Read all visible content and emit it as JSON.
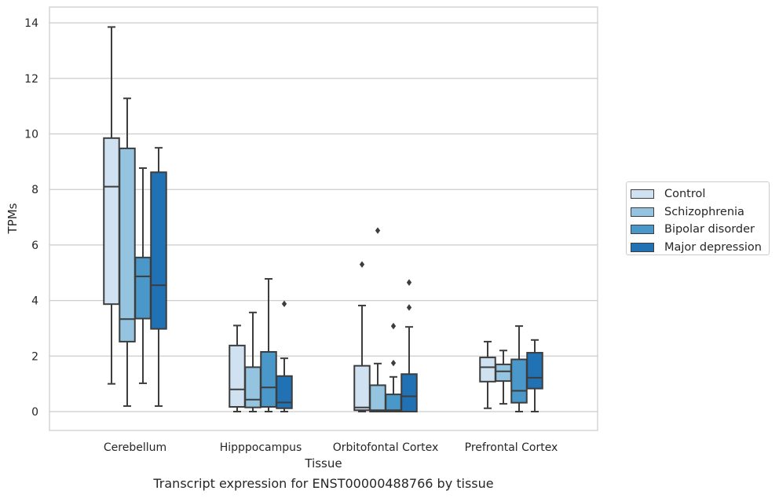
{
  "chart_data": {
    "type": "box",
    "xlabel": "Tissue",
    "ylabel": "TPMs",
    "caption": "Transcript expression for ENST00000488766 by tissue",
    "ylim": [
      -0.65,
      14.5
    ],
    "yticks": [
      0,
      2,
      4,
      6,
      8,
      10,
      12,
      14
    ],
    "grid": true,
    "legend_position": "right",
    "categories": [
      "Cerebellum",
      "Hipppocampus",
      "Orbitofontal Cortex",
      "Prefrontal Cortex"
    ],
    "series": [
      {
        "name": "Control",
        "color": "#d0e1f2",
        "boxes": [
          {
            "whisker_low": 1.0,
            "q1": 3.87,
            "median": 8.1,
            "q3": 9.85,
            "whisker_high": 13.85,
            "outliers": []
          },
          {
            "whisker_low": 0.0,
            "q1": 0.17,
            "median": 0.8,
            "q3": 2.38,
            "whisker_high": 3.1,
            "outliers": []
          },
          {
            "whisker_low": 0.0,
            "q1": 0.05,
            "median": 0.15,
            "q3": 1.65,
            "whisker_high": 3.82,
            "outliers": [
              5.3
            ]
          },
          {
            "whisker_low": 0.12,
            "q1": 1.08,
            "median": 1.6,
            "q3": 1.95,
            "whisker_high": 2.52,
            "outliers": []
          }
        ]
      },
      {
        "name": "Schizophrenia",
        "color": "#94c4df",
        "boxes": [
          {
            "whisker_low": 0.2,
            "q1": 2.52,
            "median": 3.33,
            "q3": 9.48,
            "whisker_high": 11.28,
            "outliers": []
          },
          {
            "whisker_low": 0.0,
            "q1": 0.15,
            "median": 0.43,
            "q3": 1.6,
            "whisker_high": 3.57,
            "outliers": []
          },
          {
            "whisker_low": 0.0,
            "q1": 0.0,
            "median": 0.05,
            "q3": 0.95,
            "whisker_high": 1.73,
            "outliers": [
              6.52
            ]
          },
          {
            "whisker_low": 0.28,
            "q1": 1.1,
            "median": 1.45,
            "q3": 1.7,
            "whisker_high": 2.2,
            "outliers": []
          }
        ]
      },
      {
        "name": "Bipolar disorder",
        "color": "#4a98c9",
        "boxes": [
          {
            "whisker_low": 1.02,
            "q1": 3.35,
            "median": 4.87,
            "q3": 5.55,
            "whisker_high": 8.77,
            "outliers": []
          },
          {
            "whisker_low": 0.0,
            "q1": 0.17,
            "median": 0.87,
            "q3": 2.15,
            "whisker_high": 4.78,
            "outliers": []
          },
          {
            "whisker_low": 0.0,
            "q1": 0.0,
            "median": 0.05,
            "q3": 0.62,
            "whisker_high": 1.25,
            "outliers": [
              1.75,
              3.08
            ]
          },
          {
            "whisker_low": 0.0,
            "q1": 0.32,
            "median": 0.75,
            "q3": 1.88,
            "whisker_high": 3.08,
            "outliers": []
          }
        ]
      },
      {
        "name": "Major depression",
        "color": "#2171b5",
        "boxes": [
          {
            "whisker_low": 0.2,
            "q1": 2.98,
            "median": 4.55,
            "q3": 8.62,
            "whisker_high": 9.5,
            "outliers": []
          },
          {
            "whisker_low": 0.0,
            "q1": 0.12,
            "median": 0.33,
            "q3": 1.28,
            "whisker_high": 1.92,
            "outliers": [
              3.88
            ]
          },
          {
            "whisker_low": 0.0,
            "q1": 0.0,
            "median": 0.55,
            "q3": 1.35,
            "whisker_high": 3.05,
            "outliers": [
              3.75,
              4.65
            ]
          },
          {
            "whisker_low": 0.0,
            "q1": 0.83,
            "median": 1.22,
            "q3": 2.12,
            "whisker_high": 2.58,
            "outliers": []
          }
        ]
      }
    ]
  }
}
